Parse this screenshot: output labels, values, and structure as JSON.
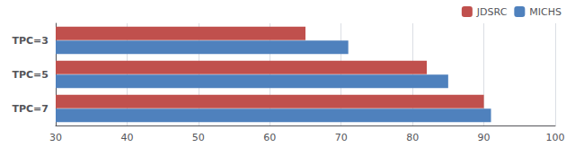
{
  "chart_data": {
    "type": "bar",
    "orientation": "horizontal",
    "categories": [
      "TPC=3",
      "TPC=5",
      "TPC=7"
    ],
    "series": [
      {
        "name": "JDSRC",
        "color": "#C0504D",
        "values": [
          65,
          82,
          90
        ]
      },
      {
        "name": "MICHS",
        "color": "#4F81BD",
        "values": [
          71,
          85,
          91
        ]
      }
    ],
    "xlim": [
      30,
      100
    ],
    "xticks": [
      30,
      40,
      50,
      60,
      70,
      80,
      90,
      100
    ],
    "grid": true,
    "legend": "upper right"
  }
}
